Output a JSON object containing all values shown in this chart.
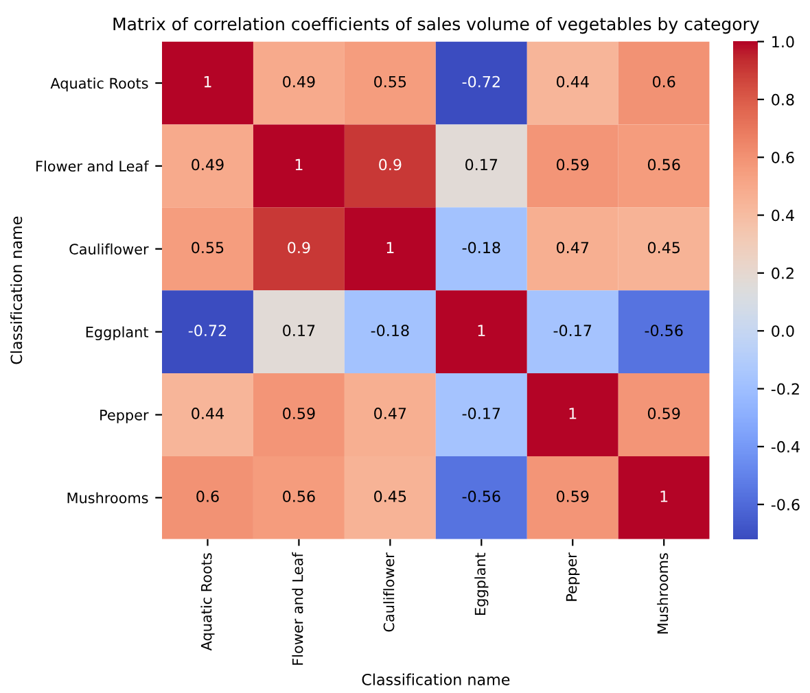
{
  "chart_data": {
    "type": "heatmap",
    "title": "Matrix of correlation coefficients of sales volume of vegetables by category",
    "xlabel": "Classification name",
    "ylabel": "Classification name",
    "categories": [
      "Aquatic Roots",
      "Flower and Leaf",
      "Cauliflower",
      "Eggplant",
      "Pepper",
      "Mushrooms"
    ],
    "y_categories": [
      "Aquatic Roots",
      "Flower and Leaf",
      "Cauliflower",
      "Eggplant",
      "Pepper",
      "Mushrooms"
    ],
    "cells": [
      [
        1,
        0.49,
        0.55,
        -0.72,
        0.44,
        0.6
      ],
      [
        0.49,
        1,
        0.9,
        0.17,
        0.59,
        0.56
      ],
      [
        0.55,
        0.9,
        1,
        -0.18,
        0.47,
        0.45
      ],
      [
        -0.72,
        0.17,
        -0.18,
        1,
        -0.17,
        -0.56
      ],
      [
        0.44,
        0.59,
        0.47,
        -0.17,
        1,
        0.59
      ],
      [
        0.6,
        0.56,
        0.45,
        -0.56,
        0.59,
        1
      ]
    ],
    "data_labels": true,
    "clim": [
      -0.72,
      1
    ],
    "cticks": [
      {
        "value": -0.6,
        "label": "-0.6"
      },
      {
        "value": -0.4,
        "label": "-0.4"
      },
      {
        "value": -0.2,
        "label": "-0.2"
      },
      {
        "value": 0.0,
        "label": "0.0"
      },
      {
        "value": 0.2,
        "label": "0.2"
      },
      {
        "value": 0.4,
        "label": "0.4"
      },
      {
        "value": 0.6,
        "label": "0.6"
      },
      {
        "value": 0.8,
        "label": "0.8"
      },
      {
        "value": 1.0,
        "label": "1.0"
      }
    ]
  }
}
